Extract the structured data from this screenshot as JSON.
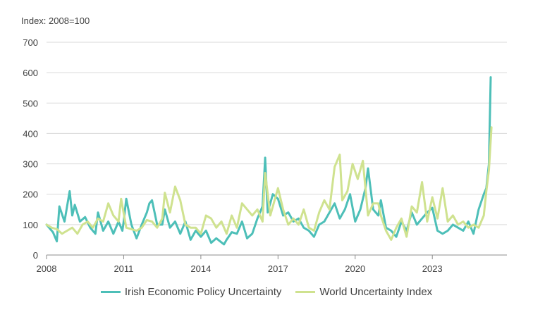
{
  "chart_data": {
    "type": "line",
    "ylabel": "Index: 2008=100",
    "ylim": [
      0,
      700
    ],
    "yticks": [
      0,
      100,
      200,
      300,
      400,
      500,
      600,
      700
    ],
    "xlim": [
      2008.0,
      2025.9
    ],
    "xticks": [
      {
        "value": 2008,
        "label": "2008"
      },
      {
        "value": 2011,
        "label": "2011"
      },
      {
        "value": 2014,
        "label": "2014"
      },
      {
        "value": 2017,
        "label": "2017"
      },
      {
        "value": 2020,
        "label": "2020"
      },
      {
        "value": 2023,
        "label": "2023"
      }
    ],
    "grid": "horizontal",
    "legend_position": "bottom",
    "series": [
      {
        "name": "Irish Economic Policy Uncertainty",
        "color": "#4dbfb8",
        "points": [
          [
            2008.0,
            100
          ],
          [
            2008.25,
            75
          ],
          [
            2008.4,
            45
          ],
          [
            2008.5,
            160
          ],
          [
            2008.7,
            110
          ],
          [
            2008.9,
            210
          ],
          [
            2009.0,
            130
          ],
          [
            2009.1,
            165
          ],
          [
            2009.3,
            110
          ],
          [
            2009.5,
            125
          ],
          [
            2009.7,
            90
          ],
          [
            2009.9,
            70
          ],
          [
            2010.0,
            140
          ],
          [
            2010.2,
            80
          ],
          [
            2010.4,
            110
          ],
          [
            2010.6,
            70
          ],
          [
            2010.8,
            110
          ],
          [
            2010.95,
            80
          ],
          [
            2011.0,
            110
          ],
          [
            2011.1,
            185
          ],
          [
            2011.3,
            100
          ],
          [
            2011.5,
            55
          ],
          [
            2011.7,
            100
          ],
          [
            2011.9,
            140
          ],
          [
            2012.0,
            170
          ],
          [
            2012.1,
            180
          ],
          [
            2012.3,
            100
          ],
          [
            2012.5,
            100
          ],
          [
            2012.6,
            150
          ],
          [
            2012.8,
            90
          ],
          [
            2013.0,
            110
          ],
          [
            2013.2,
            70
          ],
          [
            2013.4,
            110
          ],
          [
            2013.6,
            50
          ],
          [
            2013.8,
            80
          ],
          [
            2014.0,
            60
          ],
          [
            2014.2,
            80
          ],
          [
            2014.4,
            40
          ],
          [
            2014.6,
            55
          ],
          [
            2014.9,
            35
          ],
          [
            2015.0,
            50
          ],
          [
            2015.2,
            75
          ],
          [
            2015.4,
            70
          ],
          [
            2015.6,
            110
          ],
          [
            2015.8,
            55
          ],
          [
            2016.0,
            70
          ],
          [
            2016.2,
            120
          ],
          [
            2016.4,
            160
          ],
          [
            2016.5,
            320
          ],
          [
            2016.6,
            140
          ],
          [
            2016.8,
            200
          ],
          [
            2017.0,
            185
          ],
          [
            2017.2,
            130
          ],
          [
            2017.4,
            140
          ],
          [
            2017.6,
            110
          ],
          [
            2017.8,
            120
          ],
          [
            2018.0,
            90
          ],
          [
            2018.2,
            80
          ],
          [
            2018.4,
            60
          ],
          [
            2018.6,
            100
          ],
          [
            2018.8,
            110
          ],
          [
            2019.0,
            140
          ],
          [
            2019.2,
            170
          ],
          [
            2019.4,
            120
          ],
          [
            2019.6,
            150
          ],
          [
            2019.8,
            200
          ],
          [
            2020.0,
            110
          ],
          [
            2020.2,
            150
          ],
          [
            2020.4,
            220
          ],
          [
            2020.5,
            285
          ],
          [
            2020.7,
            150
          ],
          [
            2020.9,
            130
          ],
          [
            2021.0,
            180
          ],
          [
            2021.2,
            90
          ],
          [
            2021.4,
            80
          ],
          [
            2021.6,
            60
          ],
          [
            2021.8,
            110
          ],
          [
            2022.0,
            80
          ],
          [
            2022.2,
            140
          ],
          [
            2022.4,
            100
          ],
          [
            2022.6,
            120
          ],
          [
            2022.8,
            140
          ],
          [
            2023.0,
            155
          ],
          [
            2023.2,
            80
          ],
          [
            2023.4,
            70
          ],
          [
            2023.6,
            80
          ],
          [
            2023.8,
            100
          ],
          [
            2024.0,
            90
          ],
          [
            2024.2,
            80
          ],
          [
            2024.4,
            110
          ],
          [
            2024.6,
            70
          ],
          [
            2024.8,
            150
          ],
          [
            2025.0,
            200
          ],
          [
            2025.1,
            220
          ],
          [
            2025.2,
            300
          ],
          [
            2025.27,
            585
          ]
        ]
      },
      {
        "name": "World Uncertainty Index",
        "color": "#cfe28f",
        "points": [
          [
            2008.0,
            100
          ],
          [
            2008.2,
            90
          ],
          [
            2008.4,
            85
          ],
          [
            2008.6,
            70
          ],
          [
            2008.8,
            80
          ],
          [
            2009.0,
            90
          ],
          [
            2009.2,
            70
          ],
          [
            2009.4,
            100
          ],
          [
            2009.6,
            110
          ],
          [
            2009.8,
            90
          ],
          [
            2010.0,
            120
          ],
          [
            2010.2,
            110
          ],
          [
            2010.4,
            170
          ],
          [
            2010.6,
            130
          ],
          [
            2010.8,
            110
          ],
          [
            2010.9,
            185
          ],
          [
            2011.1,
            90
          ],
          [
            2011.3,
            85
          ],
          [
            2011.5,
            80
          ],
          [
            2011.7,
            90
          ],
          [
            2011.9,
            115
          ],
          [
            2012.1,
            110
          ],
          [
            2012.3,
            90
          ],
          [
            2012.5,
            120
          ],
          [
            2012.6,
            205
          ],
          [
            2012.8,
            140
          ],
          [
            2013.0,
            225
          ],
          [
            2013.2,
            180
          ],
          [
            2013.4,
            100
          ],
          [
            2013.6,
            90
          ],
          [
            2013.8,
            90
          ],
          [
            2014.0,
            70
          ],
          [
            2014.2,
            130
          ],
          [
            2014.4,
            120
          ],
          [
            2014.6,
            90
          ],
          [
            2014.8,
            110
          ],
          [
            2015.0,
            70
          ],
          [
            2015.2,
            130
          ],
          [
            2015.4,
            90
          ],
          [
            2015.6,
            170
          ],
          [
            2015.8,
            150
          ],
          [
            2016.0,
            130
          ],
          [
            2016.2,
            150
          ],
          [
            2016.4,
            110
          ],
          [
            2016.5,
            270
          ],
          [
            2016.7,
            130
          ],
          [
            2016.9,
            190
          ],
          [
            2017.0,
            220
          ],
          [
            2017.2,
            150
          ],
          [
            2017.4,
            100
          ],
          [
            2017.6,
            120
          ],
          [
            2017.8,
            100
          ],
          [
            2018.0,
            150
          ],
          [
            2018.2,
            90
          ],
          [
            2018.4,
            80
          ],
          [
            2018.6,
            140
          ],
          [
            2018.8,
            180
          ],
          [
            2019.0,
            150
          ],
          [
            2019.2,
            290
          ],
          [
            2019.4,
            330
          ],
          [
            2019.5,
            180
          ],
          [
            2019.7,
            210
          ],
          [
            2019.9,
            300
          ],
          [
            2020.1,
            250
          ],
          [
            2020.3,
            310
          ],
          [
            2020.5,
            130
          ],
          [
            2020.7,
            170
          ],
          [
            2020.9,
            170
          ],
          [
            2021.0,
            130
          ],
          [
            2021.2,
            80
          ],
          [
            2021.4,
            50
          ],
          [
            2021.6,
            90
          ],
          [
            2021.8,
            120
          ],
          [
            2022.0,
            60
          ],
          [
            2022.2,
            160
          ],
          [
            2022.4,
            140
          ],
          [
            2022.6,
            240
          ],
          [
            2022.8,
            110
          ],
          [
            2023.0,
            190
          ],
          [
            2023.2,
            120
          ],
          [
            2023.4,
            220
          ],
          [
            2023.6,
            110
          ],
          [
            2023.8,
            130
          ],
          [
            2024.0,
            100
          ],
          [
            2024.2,
            110
          ],
          [
            2024.4,
            90
          ],
          [
            2024.6,
            100
          ],
          [
            2024.8,
            90
          ],
          [
            2025.0,
            130
          ],
          [
            2025.1,
            210
          ],
          [
            2025.2,
            280
          ],
          [
            2025.3,
            420
          ]
        ]
      }
    ]
  }
}
